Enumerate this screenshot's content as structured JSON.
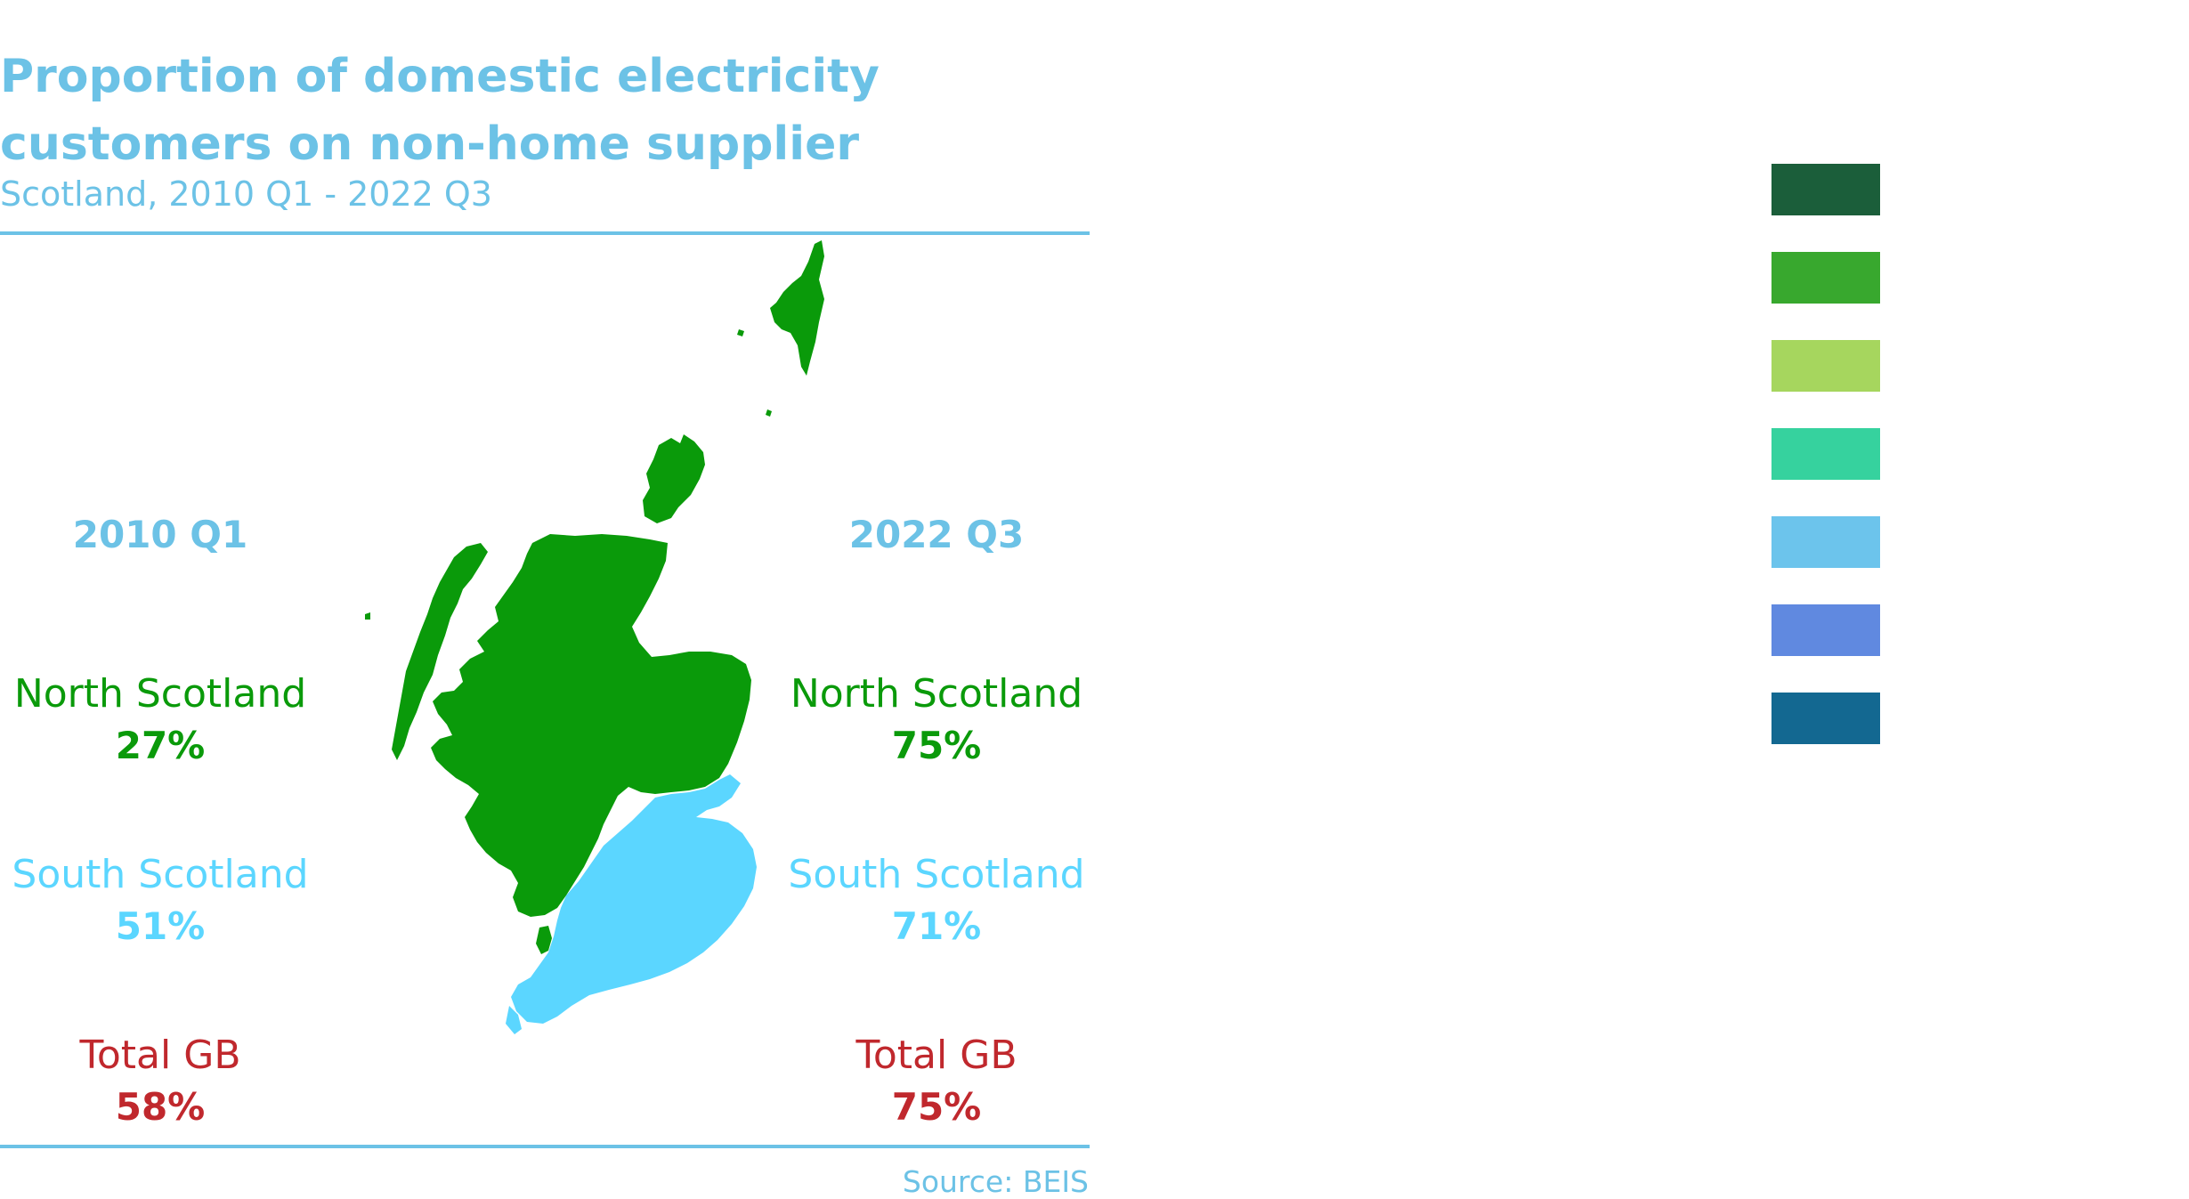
{
  "header": {
    "title_line1": "Proportion of domestic electricity",
    "title_line2": "customers on non-home supplier",
    "subtitle": "Scotland, 2010 Q1 - 2022 Q3"
  },
  "columns": {
    "left": {
      "heading": "2010 Q1",
      "north": {
        "label": "North Scotland",
        "value": "27%"
      },
      "south": {
        "label": "South Scotland",
        "value": "51%"
      },
      "total": {
        "label": "Total GB",
        "value": "58%"
      }
    },
    "right": {
      "heading": "2022 Q3",
      "north": {
        "label": "North Scotland",
        "value": "75%"
      },
      "south": {
        "label": "South Scotland",
        "value": "71%"
      },
      "total": {
        "label": "Total GB",
        "value": "75%"
      }
    }
  },
  "source": "Source: BEIS",
  "colors": {
    "accent": "#6cc2e6",
    "north": "#0a9a0a",
    "south": "#5bd6ff",
    "total": "#c0282d",
    "legend_swatches": [
      "#1b5e3a",
      "#38a82e",
      "#a6d65e",
      "#36d29e",
      "#6cc4ec",
      "#6089e0",
      "#136891"
    ]
  },
  "map_regions": [
    "north-scotland-region",
    "south-scotland-region"
  ]
}
